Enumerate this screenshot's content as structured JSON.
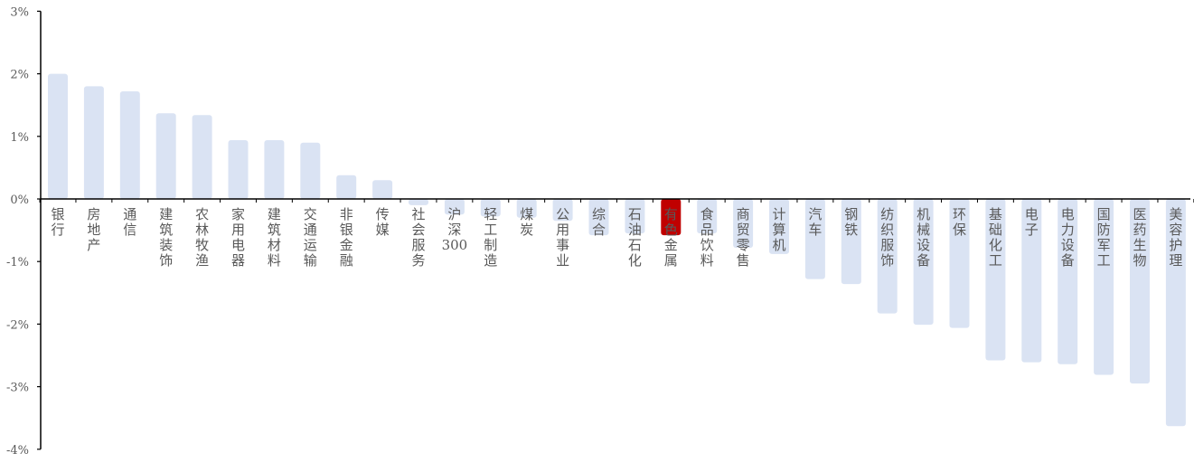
{
  "chart_data": {
    "type": "bar",
    "categories": [
      "银行",
      "房地产",
      "通信",
      "建筑装饰",
      "农林牧渔",
      "家用电器",
      "建筑材料",
      "交通运输",
      "非银金融",
      "传媒",
      "社会服务",
      "沪深300",
      "轻工制造",
      "煤炭",
      "公用事业",
      "综合",
      "石油石化",
      "有色金属",
      "食品饮料",
      "商贸零售",
      "计算机",
      "汽车",
      "钢铁",
      "纺织服饰",
      "机械设备",
      "环保",
      "基础化工",
      "电子",
      "电力设备",
      "国防军工",
      "医药生物",
      "美容护理"
    ],
    "values": [
      2.0,
      1.8,
      1.72,
      1.37,
      1.34,
      0.94,
      0.94,
      0.9,
      0.38,
      0.3,
      -0.1,
      -0.25,
      -0.28,
      -0.3,
      -0.35,
      -0.58,
      -0.55,
      -0.58,
      -0.55,
      -0.78,
      -0.88,
      -1.28,
      -1.36,
      -1.83,
      -2.01,
      -2.06,
      -2.58,
      -2.61,
      -2.64,
      -2.81,
      -2.95,
      -3.63
    ],
    "highlight_index": 17,
    "ylim": [
      -4,
      3
    ],
    "yticks": [
      3,
      2,
      1,
      0,
      -1,
      -2,
      -3,
      -4
    ],
    "ytick_labels": [
      "3%",
      "2%",
      "1%",
      "0%",
      "-1%",
      "-2%",
      "-3%",
      "-4%"
    ],
    "title": "",
    "xlabel": "",
    "ylabel": "",
    "grid": false,
    "colors": {
      "bar": "#dae3f3",
      "highlight": "#c00000",
      "axis": "#000000",
      "text": "#595959"
    }
  }
}
